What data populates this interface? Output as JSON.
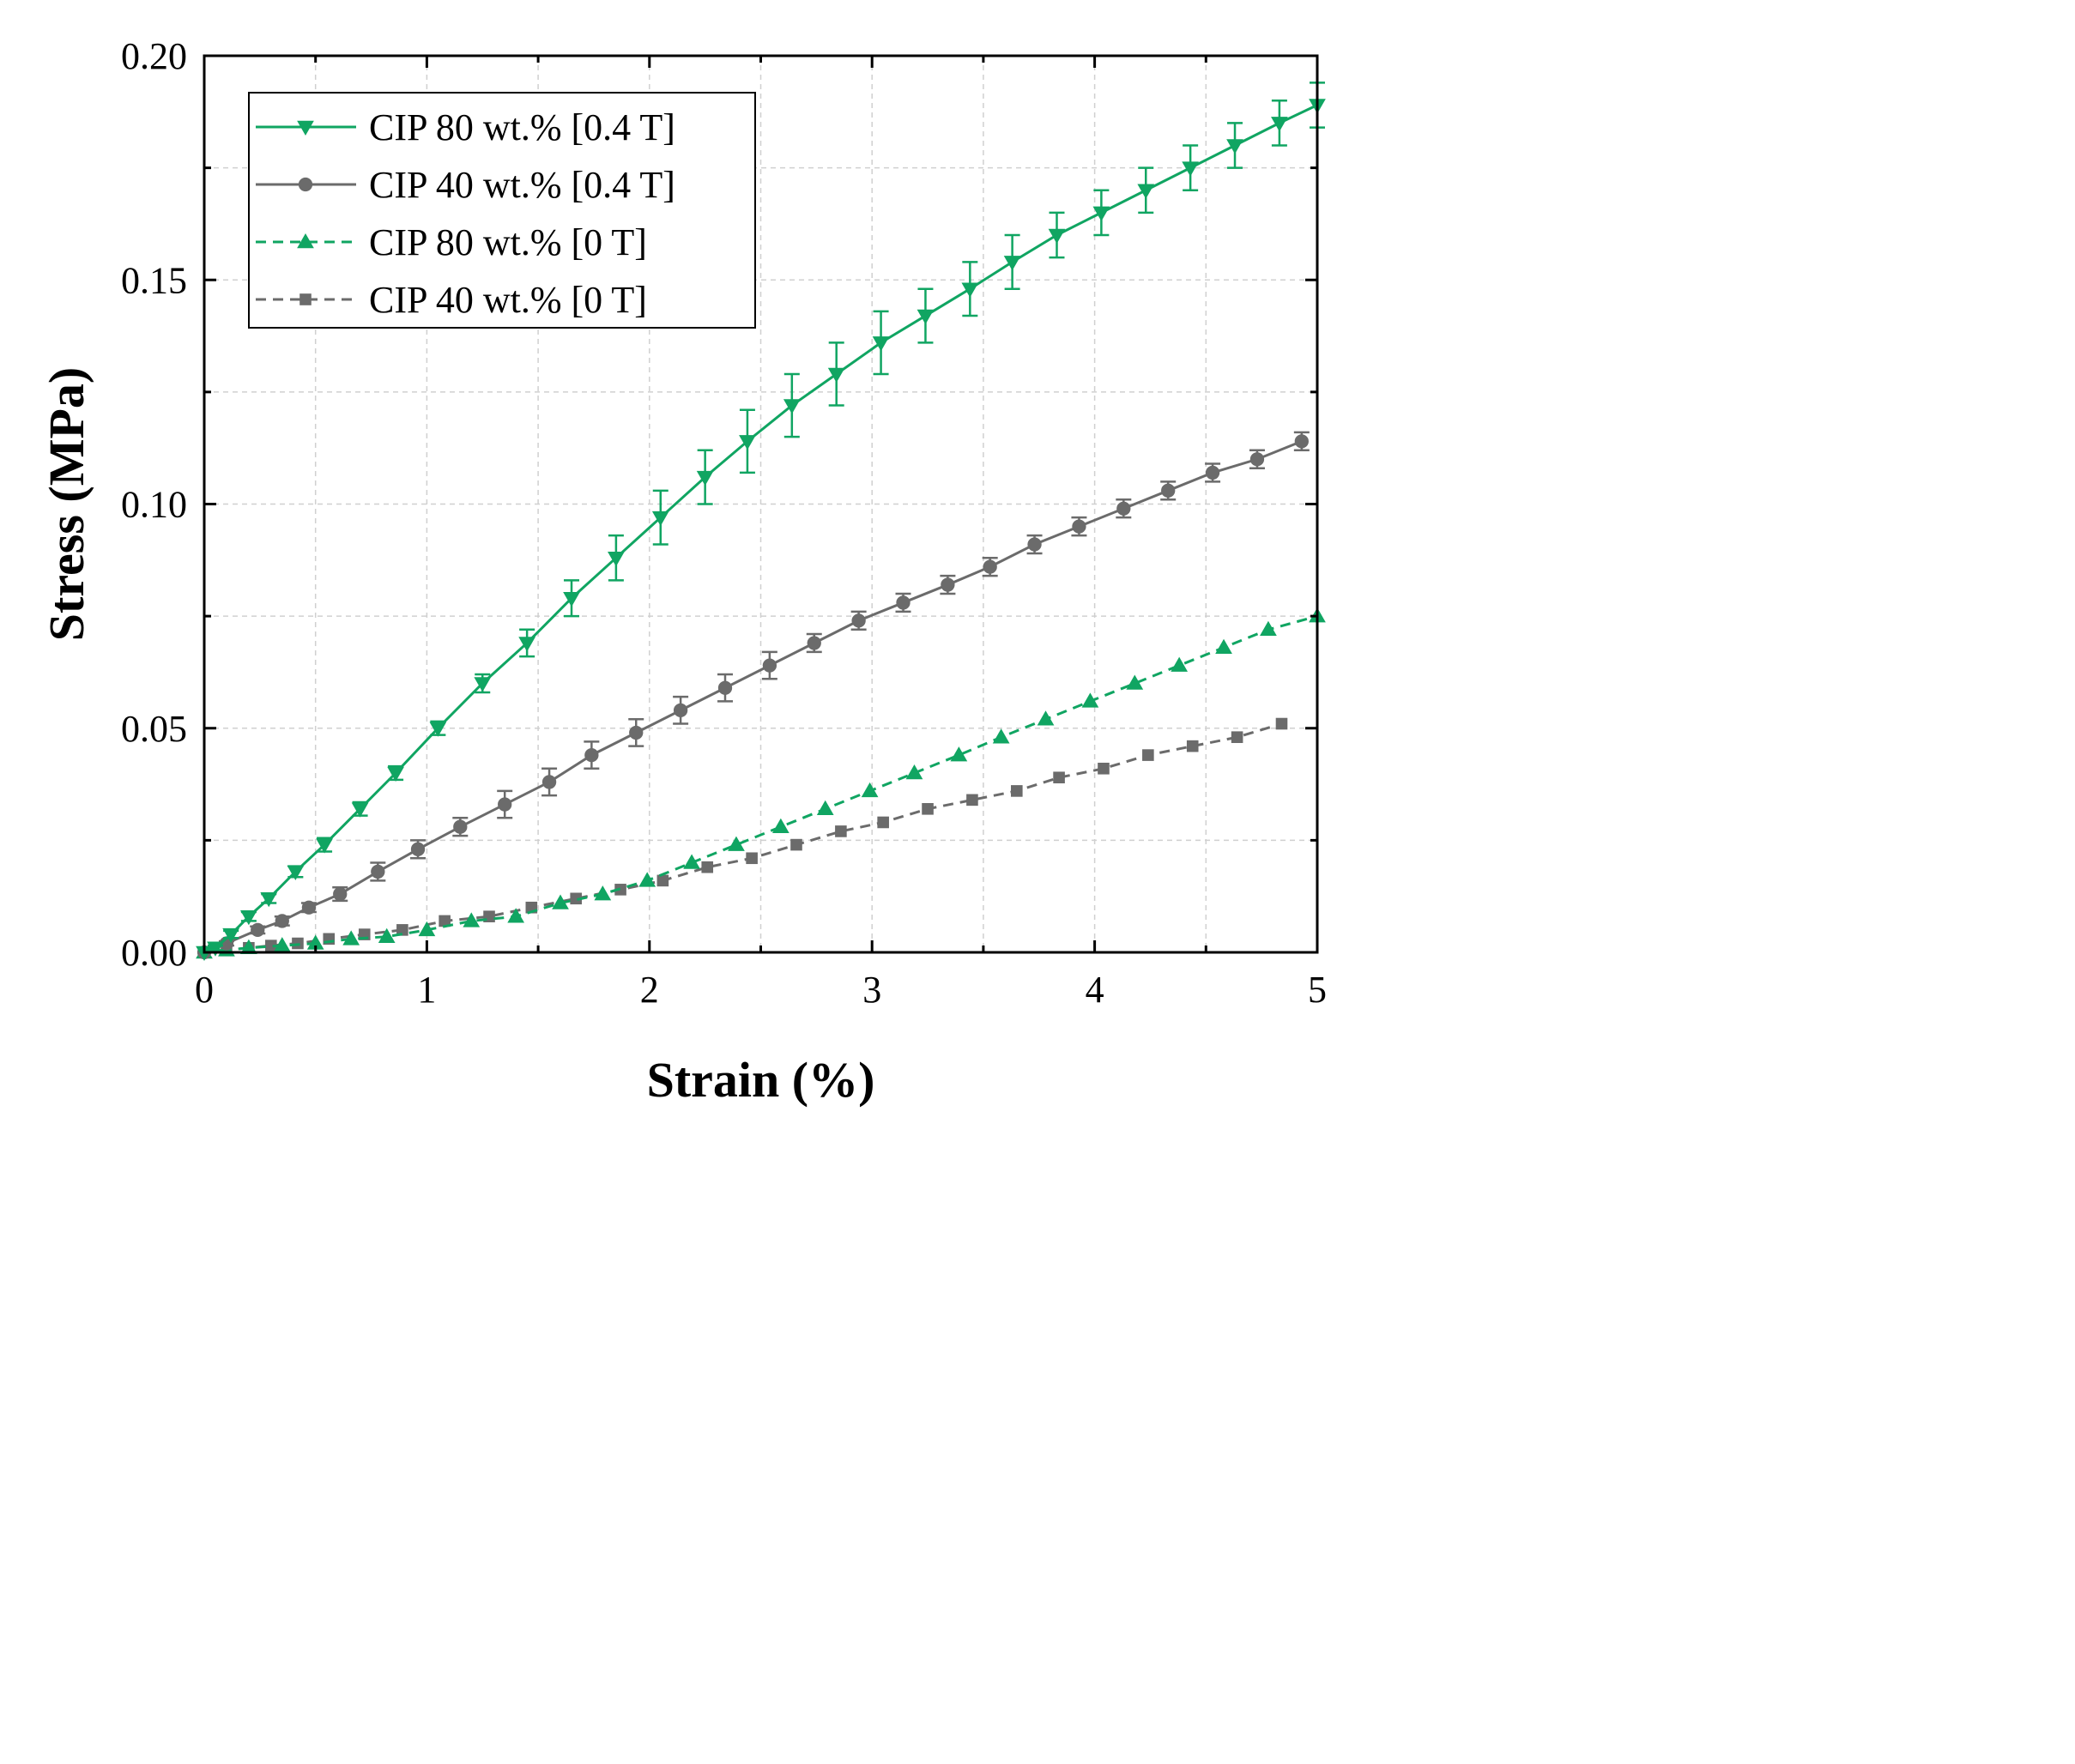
{
  "chart_data": {
    "type": "line",
    "title": "",
    "xlabel": "Strain (%)",
    "ylabel": "Stress (MPa)",
    "xlim": [
      0,
      5
    ],
    "ylim": [
      0,
      0.2
    ],
    "x_ticks": [
      "0",
      "1",
      "2",
      "3",
      "4",
      "5"
    ],
    "y_ticks": [
      "0.00",
      "0.05",
      "0.10",
      "0.15",
      "0.20"
    ],
    "grid": true,
    "legend_position": "top-left",
    "series": [
      {
        "name": "CIP 80 wt.% [0.4 T]",
        "color": "#10a562",
        "line_style": "solid",
        "marker": "triangle-down",
        "x": [
          0.0,
          0.05,
          0.12,
          0.2,
          0.29,
          0.41,
          0.54,
          0.7,
          0.86,
          1.05,
          1.25,
          1.45,
          1.65,
          1.85,
          2.05,
          2.25,
          2.44,
          2.64,
          2.84,
          3.04,
          3.24,
          3.44,
          3.63,
          3.83,
          4.03,
          4.23,
          4.43,
          4.63,
          4.83,
          5.0
        ],
        "y": [
          0.0,
          0.001,
          0.004,
          0.008,
          0.012,
          0.018,
          0.024,
          0.032,
          0.04,
          0.05,
          0.06,
          0.069,
          0.079,
          0.088,
          0.097,
          0.106,
          0.114,
          0.122,
          0.129,
          0.136,
          0.142,
          0.148,
          0.154,
          0.16,
          0.165,
          0.17,
          0.175,
          0.18,
          0.185,
          0.189
        ],
        "err": [
          0.0,
          0.0005,
          0.0008,
          0.001,
          0.001,
          0.0012,
          0.0015,
          0.0015,
          0.0015,
          0.0015,
          0.002,
          0.003,
          0.004,
          0.005,
          0.006,
          0.006,
          0.007,
          0.007,
          0.007,
          0.007,
          0.006,
          0.006,
          0.006,
          0.005,
          0.005,
          0.005,
          0.005,
          0.005,
          0.005,
          0.005
        ]
      },
      {
        "name": "CIP 40 wt.% [0.4 T]",
        "color": "#6b6b6b",
        "line_style": "solid",
        "marker": "circle",
        "x": [
          0.0,
          0.1,
          0.24,
          0.35,
          0.47,
          0.61,
          0.78,
          0.96,
          1.15,
          1.35,
          1.55,
          1.74,
          1.94,
          2.14,
          2.34,
          2.54,
          2.74,
          2.94,
          3.14,
          3.34,
          3.53,
          3.73,
          3.93,
          4.13,
          4.33,
          4.53,
          4.73,
          4.93
        ],
        "y": [
          0.0,
          0.002,
          0.005,
          0.007,
          0.01,
          0.013,
          0.018,
          0.023,
          0.028,
          0.033,
          0.038,
          0.044,
          0.049,
          0.054,
          0.059,
          0.064,
          0.069,
          0.074,
          0.078,
          0.082,
          0.086,
          0.091,
          0.095,
          0.099,
          0.103,
          0.107,
          0.11,
          0.114
        ],
        "err": [
          0.0,
          0.0005,
          0.0008,
          0.001,
          0.001,
          0.0015,
          0.002,
          0.002,
          0.002,
          0.003,
          0.003,
          0.003,
          0.003,
          0.003,
          0.003,
          0.003,
          0.002,
          0.002,
          0.002,
          0.002,
          0.002,
          0.002,
          0.002,
          0.002,
          0.002,
          0.002,
          0.002,
          0.002
        ]
      },
      {
        "name": "CIP 80 wt.% [0 T]",
        "color": "#10a562",
        "line_style": "dashed",
        "marker": "triangle-up",
        "x": [
          0.0,
          0.1,
          0.2,
          0.35,
          0.5,
          0.66,
          0.82,
          1.0,
          1.2,
          1.4,
          1.6,
          1.79,
          1.99,
          2.19,
          2.39,
          2.59,
          2.79,
          2.99,
          3.19,
          3.39,
          3.58,
          3.78,
          3.98,
          4.18,
          4.38,
          4.58,
          4.78,
          5.0
        ],
        "y": [
          0.0,
          0.0005,
          0.001,
          0.0015,
          0.002,
          0.003,
          0.0035,
          0.005,
          0.007,
          0.008,
          0.011,
          0.013,
          0.016,
          0.02,
          0.024,
          0.028,
          0.032,
          0.036,
          0.04,
          0.044,
          0.048,
          0.052,
          0.056,
          0.06,
          0.064,
          0.068,
          0.072,
          0.075
        ]
      },
      {
        "name": "CIP 40 wt.% [0 T]",
        "color": "#6b6b6b",
        "line_style": "dashed",
        "marker": "square",
        "x": [
          0.0,
          0.1,
          0.2,
          0.3,
          0.42,
          0.56,
          0.72,
          0.89,
          1.08,
          1.28,
          1.47,
          1.67,
          1.87,
          2.06,
          2.26,
          2.46,
          2.66,
          2.86,
          3.05,
          3.25,
          3.45,
          3.65,
          3.84,
          4.04,
          4.24,
          4.44,
          4.64,
          4.84
        ],
        "y": [
          0.0,
          0.0005,
          0.001,
          0.0015,
          0.002,
          0.003,
          0.004,
          0.005,
          0.007,
          0.008,
          0.01,
          0.012,
          0.014,
          0.016,
          0.019,
          0.021,
          0.024,
          0.027,
          0.029,
          0.032,
          0.034,
          0.036,
          0.039,
          0.041,
          0.044,
          0.046,
          0.048,
          0.051
        ]
      }
    ]
  }
}
